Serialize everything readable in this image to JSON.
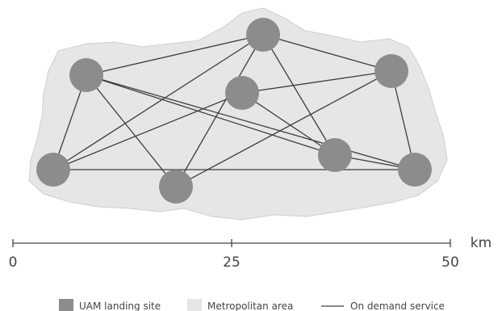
{
  "colors": {
    "site": "#8c8c8c",
    "area_fill": "#e6e6e6",
    "area_stroke": "#cfcfcf",
    "connection": "#3d3d3d",
    "text": "#444444"
  },
  "sites": [
    {
      "id": "s1"
    },
    {
      "id": "s2"
    },
    {
      "id": "s3"
    },
    {
      "id": "s4"
    },
    {
      "id": "s5"
    },
    {
      "id": "s6"
    },
    {
      "id": "s7"
    },
    {
      "id": "s8"
    }
  ],
  "connections": [
    [
      "s2",
      "s5"
    ],
    [
      "s2",
      "s4"
    ],
    [
      "s2",
      "s1"
    ],
    [
      "s2",
      "s6"
    ],
    [
      "s2",
      "s7"
    ],
    [
      "s1",
      "s7"
    ],
    [
      "s1",
      "s8"
    ],
    [
      "s1",
      "s5"
    ],
    [
      "s1",
      "s6"
    ],
    [
      "s3",
      "s6"
    ],
    [
      "s3",
      "s5"
    ],
    [
      "s3",
      "s4"
    ],
    [
      "s4",
      "s7"
    ],
    [
      "s4",
      "s8"
    ],
    [
      "s5",
      "s8"
    ],
    [
      "s6",
      "s8"
    ]
  ],
  "scale": {
    "unit": "km",
    "ticks": [
      "0",
      "25",
      "50"
    ]
  },
  "legend": {
    "site_label": "UAM landing site",
    "area_label": "Metropolitan area",
    "service_label": "On demand service"
  }
}
